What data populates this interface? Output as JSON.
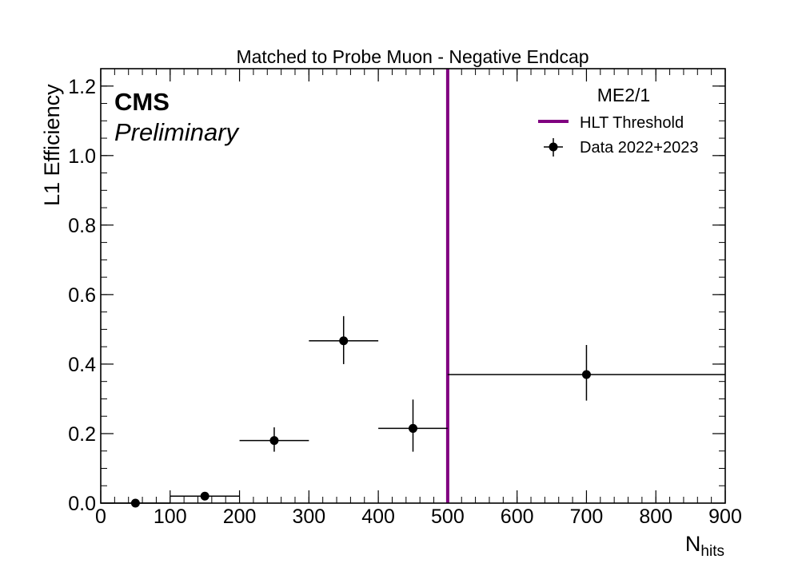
{
  "chart_data": {
    "type": "scatter",
    "title": "Matched to Probe Muon - Negative Endcap",
    "xlabel_main": "N",
    "xlabel_sub": "hits",
    "ylabel": "L1 Efficiency",
    "xlim": [
      0,
      900
    ],
    "ylim": [
      0,
      1.25
    ],
    "x_ticks": [
      0,
      100,
      200,
      300,
      400,
      500,
      600,
      700,
      800,
      900
    ],
    "y_ticks": [
      0,
      0.2,
      0.4,
      0.6,
      0.8,
      1.0,
      1.2
    ],
    "x_tick_labels": [
      "0",
      "100",
      "200",
      "300",
      "400",
      "500",
      "600",
      "700",
      "800",
      "900"
    ],
    "y_tick_labels": [
      "0.0",
      "0.2",
      "0.4",
      "0.6",
      "0.8",
      "1.0",
      "1.2"
    ],
    "grid": false,
    "experiment_label": "CMS",
    "status_label": "Preliminary",
    "legend": {
      "placement": "top-right",
      "title": "ME2/1",
      "entries": [
        {
          "label": "HLT Threshold",
          "kind": "line",
          "color": "#800080"
        },
        {
          "label": "Data 2022+2023",
          "kind": "marker",
          "color": "#000000"
        }
      ]
    },
    "threshold": {
      "name": "HLT Threshold",
      "x": 500,
      "color": "#800080"
    },
    "series": [
      {
        "name": "Data 2022+2023",
        "color": "#000000",
        "points": [
          {
            "x": 50,
            "y": 0.0,
            "xlow": 0,
            "xhigh": 100,
            "ylow": 0.0,
            "yhigh": 0.0
          },
          {
            "x": 150,
            "y": 0.02,
            "xlow": 100,
            "xhigh": 200,
            "ylow": 0.015,
            "yhigh": 0.025
          },
          {
            "x": 250,
            "y": 0.18,
            "xlow": 200,
            "xhigh": 300,
            "ylow": 0.148,
            "yhigh": 0.218
          },
          {
            "x": 350,
            "y": 0.467,
            "xlow": 300,
            "xhigh": 400,
            "ylow": 0.4,
            "yhigh": 0.538
          },
          {
            "x": 450,
            "y": 0.215,
            "xlow": 400,
            "xhigh": 500,
            "ylow": 0.148,
            "yhigh": 0.298
          },
          {
            "x": 700,
            "y": 0.37,
            "xlow": 500,
            "xhigh": 900,
            "ylow": 0.295,
            "yhigh": 0.455
          }
        ]
      }
    ]
  }
}
